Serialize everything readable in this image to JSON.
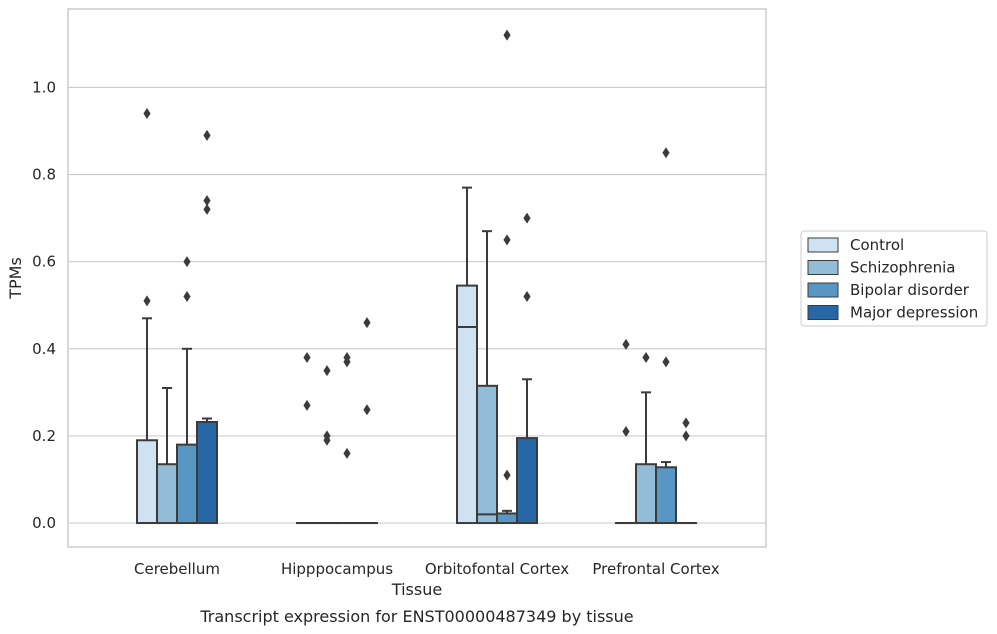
{
  "chart_data": {
    "type": "box",
    "xlabel": "Tissue",
    "ylabel": "TPMs",
    "caption": "Transcript expression for ENST00000487349 by tissue",
    "ylim": [
      -0.055,
      1.18
    ],
    "yticks": [
      0.0,
      0.2,
      0.4,
      0.6,
      0.8,
      1.0
    ],
    "ytick_labels": [
      "0.0",
      "0.2",
      "0.4",
      "0.6",
      "0.8",
      "1.0"
    ],
    "grid": "horizontal",
    "legend_position": "right",
    "categories": [
      "Cerebellum",
      "Hipppocampus",
      "Orbitofontal Cortex",
      "Prefrontal Cortex"
    ],
    "series": [
      {
        "name": "Control",
        "color": "#d0e1f1",
        "boxes": [
          {
            "q1": 0.0,
            "median": 0.0,
            "q3": 0.19,
            "whisker_low": 0.0,
            "whisker_high": 0.47,
            "outliers": [
              0.51,
              0.94
            ]
          },
          {
            "q1": 0.0,
            "median": 0.0,
            "q3": 0.0,
            "whisker_low": 0.0,
            "whisker_high": 0.0,
            "outliers": [
              0.27,
              0.38
            ]
          },
          {
            "q1": 0.0,
            "median": 0.45,
            "q3": 0.545,
            "whisker_low": 0.0,
            "whisker_high": 0.77,
            "outliers": []
          },
          {
            "q1": 0.0,
            "median": 0.0,
            "q3": 0.0,
            "whisker_low": 0.0,
            "whisker_high": 0.0,
            "outliers": [
              0.21,
              0.41
            ]
          }
        ]
      },
      {
        "name": "Schizophrenia",
        "color": "#93bcd9",
        "boxes": [
          {
            "q1": 0.0,
            "median": 0.0,
            "q3": 0.135,
            "whisker_low": 0.0,
            "whisker_high": 0.31,
            "outliers": []
          },
          {
            "q1": 0.0,
            "median": 0.0,
            "q3": 0.0,
            "whisker_low": 0.0,
            "whisker_high": 0.0,
            "outliers": [
              0.19,
              0.2,
              0.35
            ]
          },
          {
            "q1": 0.0,
            "median": 0.02,
            "q3": 0.315,
            "whisker_low": 0.0,
            "whisker_high": 0.67,
            "outliers": []
          },
          {
            "q1": 0.0,
            "median": 0.0,
            "q3": 0.135,
            "whisker_low": 0.0,
            "whisker_high": 0.3,
            "outliers": [
              0.38
            ]
          }
        ]
      },
      {
        "name": "Bipolar disorder",
        "color": "#5897c4",
        "boxes": [
          {
            "q1": 0.0,
            "median": 0.0,
            "q3": 0.18,
            "whisker_low": 0.0,
            "whisker_high": 0.4,
            "outliers": [
              0.52,
              0.6
            ]
          },
          {
            "q1": 0.0,
            "median": 0.0,
            "q3": 0.0,
            "whisker_low": 0.0,
            "whisker_high": 0.0,
            "outliers": [
              0.16,
              0.37,
              0.38
            ]
          },
          {
            "q1": 0.0,
            "median": 0.0,
            "q3": 0.022,
            "whisker_low": 0.0,
            "whisker_high": 0.028,
            "outliers": [
              0.11,
              0.65,
              1.12
            ]
          },
          {
            "q1": 0.0,
            "median": 0.0,
            "q3": 0.128,
            "whisker_low": 0.0,
            "whisker_high": 0.14,
            "outliers": [
              0.37,
              0.85
            ]
          }
        ]
      },
      {
        "name": "Major depression",
        "color": "#2767a6",
        "boxes": [
          {
            "q1": 0.0,
            "median": 0.0,
            "q3": 0.232,
            "whisker_low": 0.0,
            "whisker_high": 0.24,
            "outliers": [
              0.72,
              0.74,
              0.89
            ]
          },
          {
            "q1": 0.0,
            "median": 0.0,
            "q3": 0.0,
            "whisker_low": 0.0,
            "whisker_high": 0.0,
            "outliers": [
              0.26,
              0.46
            ]
          },
          {
            "q1": 0.0,
            "median": 0.0,
            "q3": 0.195,
            "whisker_low": 0.0,
            "whisker_high": 0.33,
            "outliers": [
              0.52,
              0.7
            ]
          },
          {
            "q1": 0.0,
            "median": 0.0,
            "q3": 0.0,
            "whisker_low": 0.0,
            "whisker_high": 0.0,
            "outliers": [
              0.2,
              0.23
            ]
          }
        ]
      }
    ]
  }
}
